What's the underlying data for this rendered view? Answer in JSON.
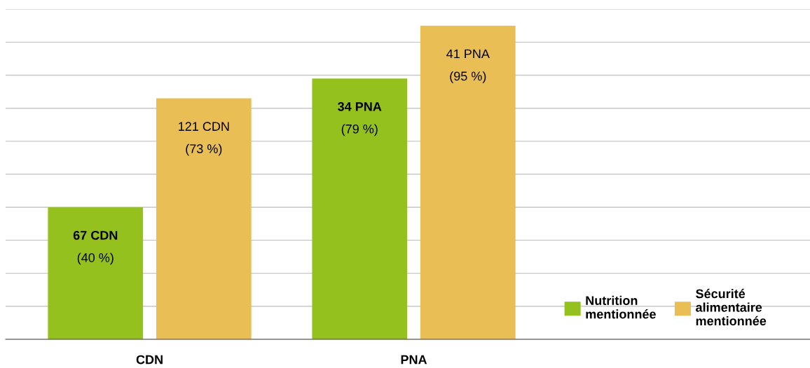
{
  "chart_data": {
    "type": "bar",
    "categories": [
      "CDN",
      "PNA"
    ],
    "series": [
      {
        "name": "Nutrition\nmentionnée",
        "color": "#95c11f",
        "values": [
          40,
          79
        ],
        "value_labels": [
          "67 CDN\n(40 %)",
          "34 PNA\n(79 %)"
        ]
      },
      {
        "name": "Sécurité\nalimentaire\nmentionnée",
        "color": "#e9bf55",
        "values": [
          73,
          95
        ],
        "value_labels": [
          "121 CDN\n(73 %)",
          "41 PNA\n(95 %)"
        ]
      }
    ],
    "ylim": [
      0,
      100
    ],
    "yticks": [
      {
        "value": 0,
        "label": null
      },
      {
        "value": 10,
        "label": null
      },
      {
        "value": 20,
        "label": null
      },
      {
        "value": 30,
        "label": null
      },
      {
        "value": 40,
        "label": null
      },
      {
        "value": 50,
        "label": null
      },
      {
        "value": 60,
        "label": null
      },
      {
        "value": 70,
        "label": null
      },
      {
        "value": 80,
        "label": null
      },
      {
        "value": 90,
        "label": null
      },
      {
        "value": 100,
        "label": null
      }
    ],
    "tick_labels": "x",
    "grid": "y",
    "legend": "bottom right"
  }
}
